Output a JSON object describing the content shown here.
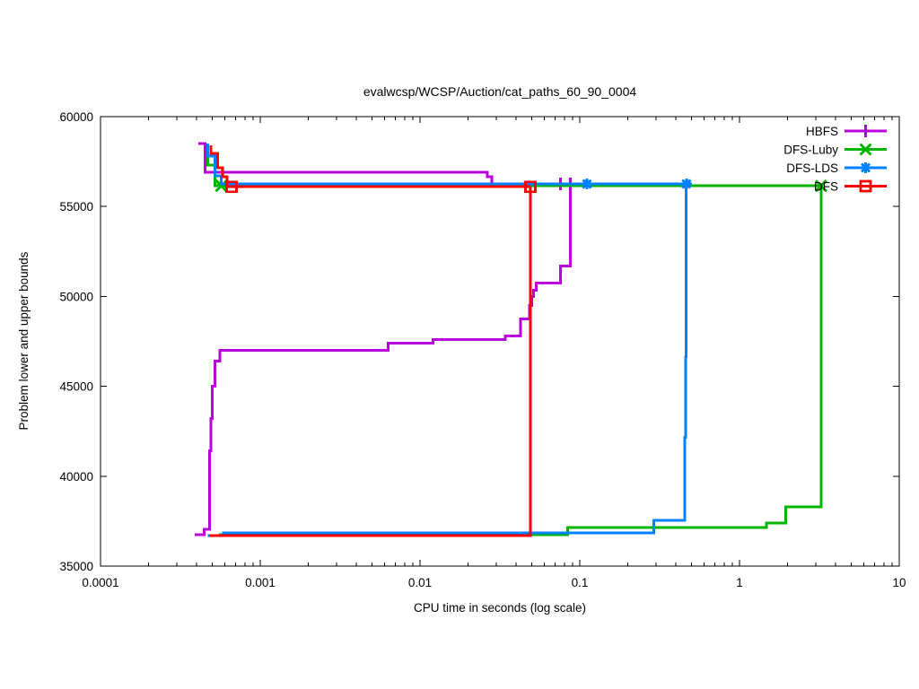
{
  "title": "evalwcsp/WCSP/Auction/cat_paths_60_90_0004",
  "chart_data": {
    "type": "line",
    "title": "evalwcsp/WCSP/Auction/cat_paths_60_90_0004",
    "xlabel": "CPU time in seconds (log scale)",
    "ylabel": "Problem lower and upper bounds",
    "x_scale": "log",
    "xlim": [
      0.0001,
      10
    ],
    "ylim": [
      35000,
      60000
    ],
    "grid": false,
    "legend_position": "top-right-inside",
    "x_ticks": [
      {
        "v": 0.0001,
        "label": "0.0001"
      },
      {
        "v": 0.001,
        "label": "0.001"
      },
      {
        "v": 0.01,
        "label": "0.01"
      },
      {
        "v": 0.1,
        "label": "0.1"
      },
      {
        "v": 1,
        "label": "1"
      },
      {
        "v": 10,
        "label": "10"
      }
    ],
    "y_ticks": [
      {
        "v": 35000,
        "label": "35000"
      },
      {
        "v": 40000,
        "label": "40000"
      },
      {
        "v": 45000,
        "label": "45000"
      },
      {
        "v": 50000,
        "label": "50000"
      },
      {
        "v": 55000,
        "label": "55000"
      },
      {
        "v": 60000,
        "label": "60000"
      }
    ],
    "series": [
      {
        "name": "HBFS",
        "color": "#bb00dd",
        "marker": "plus",
        "upper": [
          [
            0.00041,
            58500
          ],
          [
            0.00045,
            58500
          ],
          [
            0.00045,
            56900
          ],
          [
            0.0264,
            56900
          ],
          [
            0.0264,
            56650
          ],
          [
            0.0282,
            56650
          ],
          [
            0.0282,
            56250
          ],
          [
            0.0875,
            56250
          ]
        ],
        "lower": [
          [
            0.00039,
            36740
          ],
          [
            0.000445,
            36740
          ],
          [
            0.000445,
            37040
          ],
          [
            0.00048,
            37040
          ],
          [
            0.00048,
            41400
          ],
          [
            0.00049,
            41400
          ],
          [
            0.00049,
            43200
          ],
          [
            0.0005,
            43200
          ],
          [
            0.0005,
            45000
          ],
          [
            0.00052,
            45000
          ],
          [
            0.00052,
            46400
          ],
          [
            0.00056,
            46400
          ],
          [
            0.00056,
            47000
          ],
          [
            0.0063,
            47000
          ],
          [
            0.0063,
            47400
          ],
          [
            0.0121,
            47400
          ],
          [
            0.0121,
            47600
          ],
          [
            0.0342,
            47600
          ],
          [
            0.0342,
            47800
          ],
          [
            0.0426,
            47800
          ],
          [
            0.0426,
            48750
          ],
          [
            0.0485,
            48750
          ],
          [
            0.0485,
            49500
          ],
          [
            0.05,
            49500
          ],
          [
            0.05,
            50000
          ],
          [
            0.0514,
            50000
          ],
          [
            0.0514,
            50350
          ],
          [
            0.0535,
            50350
          ],
          [
            0.0535,
            50750
          ],
          [
            0.0755,
            50750
          ],
          [
            0.0755,
            51700
          ],
          [
            0.0875,
            51700
          ],
          [
            0.0875,
            56250
          ]
        ],
        "markers_at": [
          [
            0.0755,
            56250
          ],
          [
            0.0875,
            56250
          ]
        ]
      },
      {
        "name": "DFS-Luby",
        "color": "#00b400",
        "marker": "cross",
        "upper": [
          [
            0.00047,
            58500
          ],
          [
            0.00047,
            57300
          ],
          [
            0.00052,
            57300
          ],
          [
            0.00052,
            56150
          ],
          [
            3.24,
            56150
          ]
        ],
        "lower": [
          [
            0.00055,
            36740
          ],
          [
            0.084,
            36740
          ],
          [
            0.084,
            37140
          ],
          [
            1.47,
            37140
          ],
          [
            1.47,
            37390
          ],
          [
            1.95,
            37390
          ],
          [
            1.95,
            38290
          ],
          [
            3.24,
            38290
          ],
          [
            3.24,
            56150
          ]
        ],
        "markers_at": [
          [
            0.00057,
            56150
          ],
          [
            3.24,
            56150
          ]
        ]
      },
      {
        "name": "DFS-LDS",
        "color": "#0082ff",
        "marker": "star",
        "upper": [
          [
            0.00047,
            58500
          ],
          [
            0.00047,
            57800
          ],
          [
            0.00052,
            57800
          ],
          [
            0.00052,
            56700
          ],
          [
            0.00057,
            56700
          ],
          [
            0.00057,
            56250
          ],
          [
            0.467,
            56250
          ]
        ],
        "lower": [
          [
            0.00047,
            36700
          ],
          [
            0.00059,
            36700
          ],
          [
            0.00059,
            36840
          ],
          [
            0.29,
            36840
          ],
          [
            0.29,
            37540
          ],
          [
            0.454,
            37540
          ],
          [
            0.454,
            42170
          ],
          [
            0.459,
            42170
          ],
          [
            0.459,
            46650
          ],
          [
            0.464,
            46650
          ],
          [
            0.464,
            56250
          ]
        ],
        "markers_at": [
          [
            0.111,
            56250
          ],
          [
            0.465,
            56250
          ]
        ]
      },
      {
        "name": "DFS",
        "color": "#ff0000",
        "marker": "square",
        "upper": [
          [
            0.00049,
            58400
          ],
          [
            0.00049,
            57960
          ],
          [
            0.00054,
            57960
          ],
          [
            0.00054,
            57160
          ],
          [
            0.00058,
            57160
          ],
          [
            0.00058,
            56660
          ],
          [
            0.00062,
            56660
          ],
          [
            0.00062,
            56100
          ],
          [
            0.0491,
            56100
          ]
        ],
        "lower": [
          [
            0.00048,
            36690
          ],
          [
            0.0491,
            36690
          ],
          [
            0.0491,
            56100
          ]
        ],
        "markers_at": [
          [
            0.00066,
            56100
          ],
          [
            0.0491,
            56100
          ]
        ]
      }
    ]
  }
}
